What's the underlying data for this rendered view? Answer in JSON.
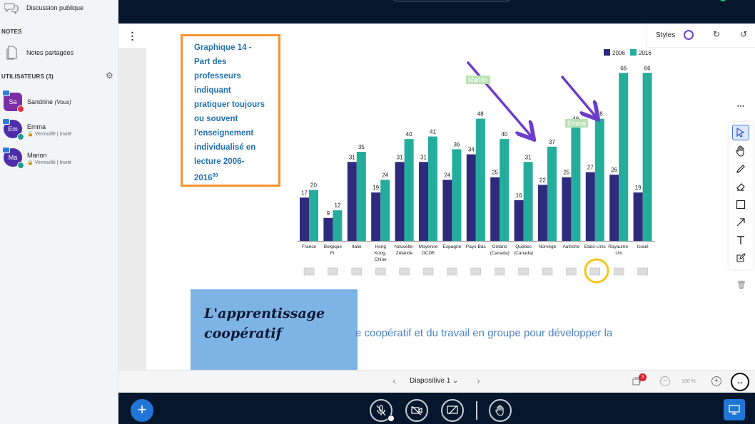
{
  "sidebar": {
    "public_chat": "Discussion publique",
    "notes_section": "NOTES",
    "shared_notes": "Notes partagées",
    "users_section": "UTILISATEURS (3)",
    "users": [
      {
        "initials": "Sa",
        "name": "Sandrine",
        "suffix": "(Vous)",
        "sub": "",
        "color": "#7b2fa6"
      },
      {
        "initials": "Em",
        "name": "Emma",
        "suffix": "",
        "sub": "Verrouillé | Invité",
        "color": "#4d2ea8"
      },
      {
        "initials": "Ma",
        "name": "Marion",
        "suffix": "",
        "sub": "Verrouillé | Invité",
        "color": "#4d2ea8"
      }
    ]
  },
  "slide": {
    "caption_lines": [
      "Graphique 14 -",
      "Part des",
      "professeurs",
      "indiquant",
      "pratiquer toujours",
      "ou souvent",
      "l'enseignement",
      "individualisé en",
      "lecture 2006-"
    ],
    "caption_last": "2016",
    "caption_footnote": "89",
    "card_line1": "L'apprentissage",
    "card_line2": "coopératif",
    "body_text": "e coopératif et du travail en groupe pour développer la"
  },
  "annotations": {
    "marion": "Marion",
    "emma": "Emma"
  },
  "chart_data": {
    "type": "bar",
    "categories": [
      "France",
      "Belgique Fl.",
      "Italie",
      "Hong Kong, Chine",
      "Nouvelle-Zélande",
      "Moyenne OCDE",
      "Espagne",
      "Pays-Bas",
      "Ontario (Canada)",
      "Québec (Canada)",
      "Norvège",
      "Autriche",
      "Etats-Unis",
      "Royaume-Uni",
      "Israel"
    ],
    "category_lines": [
      [
        "France"
      ],
      [
        "Belgique",
        "Fl."
      ],
      [
        "Italie"
      ],
      [
        "Hong",
        "Kong,",
        "Chine"
      ],
      [
        "Nouvelle-",
        "Zélande"
      ],
      [
        "Moyenne",
        "OCDE"
      ],
      [
        "Espagne"
      ],
      [
        "Pays-Bas"
      ],
      [
        "Ontario",
        "(Canada)"
      ],
      [
        "Québec",
        "(Canada)"
      ],
      [
        "Norvège"
      ],
      [
        "Autriche"
      ],
      [
        "Etats-Unis"
      ],
      [
        "Royaume-",
        "Uni"
      ],
      [
        "Israel"
      ]
    ],
    "series": [
      {
        "name": "2006",
        "color": "#2e2a7c",
        "values": [
          17,
          9,
          31,
          19,
          31,
          31,
          24,
          34,
          25,
          16,
          22,
          25,
          27,
          26,
          19
        ]
      },
      {
        "name": "2016",
        "color": "#25ad9c",
        "values": [
          20,
          12,
          35,
          24,
          40,
          41,
          36,
          48,
          40,
          31,
          37,
          46,
          48,
          66,
          66
        ]
      }
    ],
    "ylim": [
      0,
      70
    ],
    "legend": "top-right",
    "grid": false,
    "flags": [
      "france-flag",
      "belgium-flag",
      "italy-flag",
      "china-flag",
      "new-zealand-flag",
      "oecd-logo",
      "spain-flag",
      "netherlands-flag",
      "canada-flag",
      "canada-flag",
      "norway-flag",
      "austria-flag",
      "usa-flag",
      "uk-flag",
      "israel-flag"
    ]
  },
  "styles_panel": {
    "label": "Styles"
  },
  "footer": {
    "slide_label": "Diapositive 1",
    "zoom": "100 %",
    "notes_badge": "3"
  },
  "colors": {
    "accent": "#2076d7",
    "dark_bar": "#06172d",
    "caption_border": "#f7932e",
    "annotation_arrow": "#6c3cc9"
  }
}
